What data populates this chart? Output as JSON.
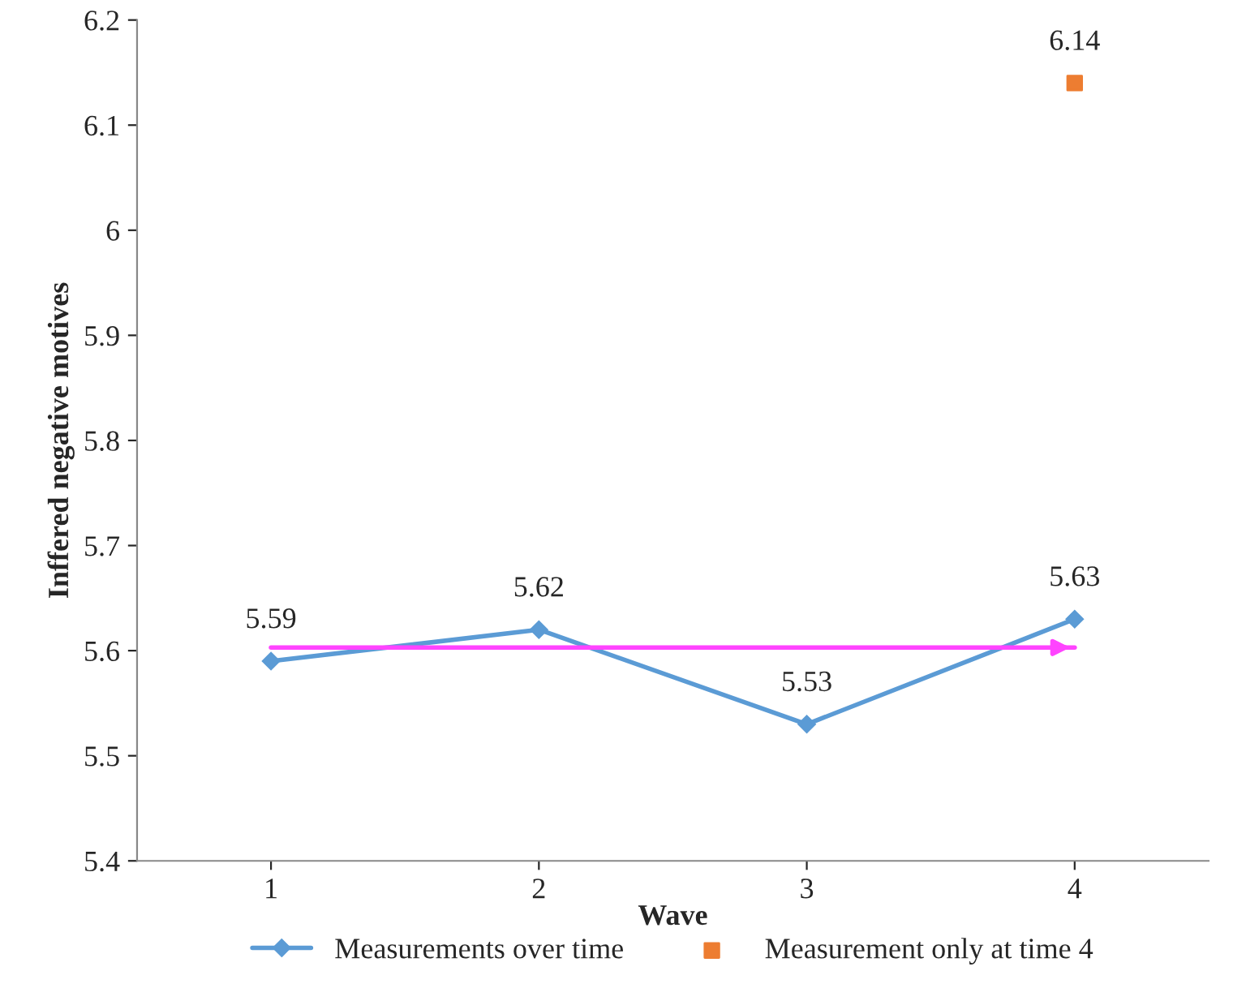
{
  "chart_data": {
    "type": "line",
    "xlabel": "Wave",
    "ylabel": "Inffered negative motives",
    "categories": [
      "1",
      "2",
      "3",
      "4"
    ],
    "series": [
      {
        "name": "Measurements over time",
        "color": "#5b9bd5",
        "marker": "diamond",
        "values": [
          5.59,
          5.62,
          5.53,
          5.63
        ],
        "value_labels": [
          "5.59",
          "5.62",
          "5.53",
          "5.63"
        ]
      },
      {
        "name": "Measurement only at time 4",
        "type": "scatter",
        "color": "#ed7d31",
        "marker": "square",
        "values": [
          null,
          null,
          null,
          6.14
        ],
        "value_labels": [
          null,
          null,
          null,
          "6.14"
        ]
      },
      {
        "type": "line",
        "color": "#ff44ff",
        "marker": "none",
        "values": [
          5.603,
          5.603,
          5.603,
          5.603
        ]
      }
    ],
    "ylim": [
      5.4,
      6.2
    ],
    "yticks": [
      5.4,
      5.5,
      5.6,
      5.7,
      5.8,
      5.9,
      6,
      6.1,
      6.2
    ],
    "grid": false,
    "legend": "bottom"
  }
}
